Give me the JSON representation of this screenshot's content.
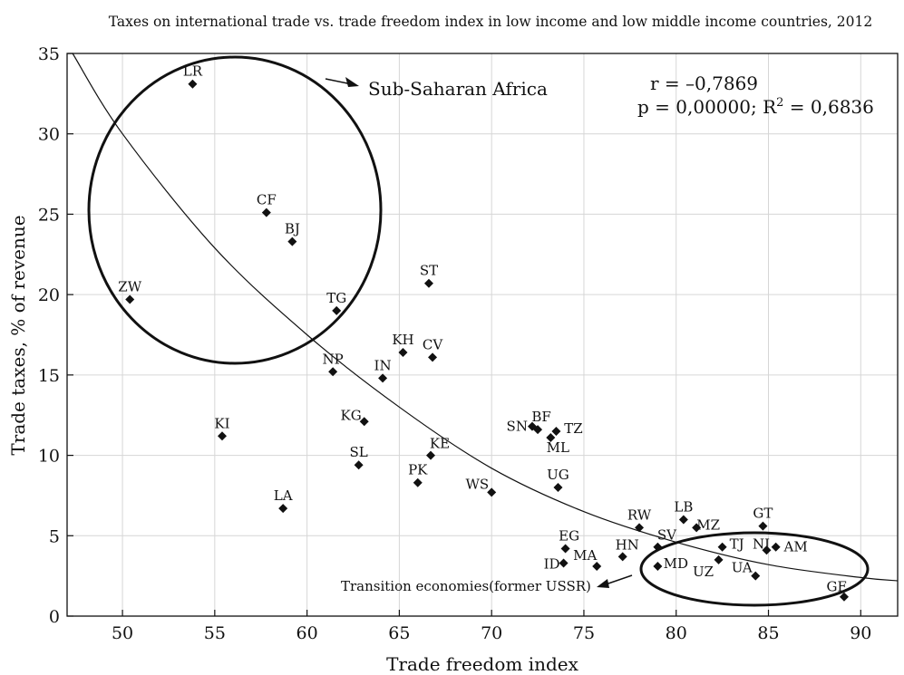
{
  "chart_data": {
    "type": "scatter",
    "title": "Taxes on international trade vs. trade freedom index in low income and low middle income countries, 2012",
    "xlabel": "Trade freedom index",
    "ylabel": "Trade taxes, % of revenue",
    "xlim": [
      47,
      92
    ],
    "ylim": [
      0,
      35
    ],
    "x_ticks": [
      50,
      55,
      60,
      65,
      70,
      75,
      80,
      85,
      90
    ],
    "y_ticks": [
      0,
      5,
      10,
      15,
      20,
      25,
      30,
      35
    ],
    "grid": true,
    "marker": "diamond",
    "points": [
      {
        "label": "LR",
        "x": 53.8,
        "y": 33.1
      },
      {
        "label": "CF",
        "x": 57.8,
        "y": 25.1
      },
      {
        "label": "BJ",
        "x": 59.2,
        "y": 23.3
      },
      {
        "label": "ZW",
        "x": 50.4,
        "y": 19.7
      },
      {
        "label": "TG",
        "x": 61.6,
        "y": 19.0
      },
      {
        "label": "ST",
        "x": 66.6,
        "y": 20.7
      },
      {
        "label": "KH",
        "x": 65.2,
        "y": 16.4
      },
      {
        "label": "CV",
        "x": 66.8,
        "y": 16.1
      },
      {
        "label": "NP",
        "x": 61.4,
        "y": 15.2
      },
      {
        "label": "IN",
        "x": 64.1,
        "y": 14.8
      },
      {
        "label": "KI",
        "x": 55.4,
        "y": 11.2
      },
      {
        "label": "KG",
        "x": 63.1,
        "y": 12.1
      },
      {
        "label": "SL",
        "x": 62.8,
        "y": 9.4
      },
      {
        "label": "KE",
        "x": 66.7,
        "y": 10.0
      },
      {
        "label": "PK",
        "x": 66.0,
        "y": 8.3
      },
      {
        "label": "LA",
        "x": 58.7,
        "y": 6.7
      },
      {
        "label": "WS",
        "x": 70.0,
        "y": 7.7
      },
      {
        "label": "SN",
        "x": 72.2,
        "y": 11.8
      },
      {
        "label": "BF",
        "x": 72.5,
        "y": 11.6
      },
      {
        "label": "TZ",
        "x": 73.5,
        "y": 11.5
      },
      {
        "label": "ML",
        "x": 73.2,
        "y": 11.1
      },
      {
        "label": "UG",
        "x": 73.6,
        "y": 8.0
      },
      {
        "label": "EG",
        "x": 74.0,
        "y": 4.2
      },
      {
        "label": "ID",
        "x": 73.9,
        "y": 3.3
      },
      {
        "label": "MA",
        "x": 75.7,
        "y": 3.1
      },
      {
        "label": "HN",
        "x": 77.1,
        "y": 3.7
      },
      {
        "label": "RW",
        "x": 78.0,
        "y": 5.5
      },
      {
        "label": "SV",
        "x": 79.0,
        "y": 4.3
      },
      {
        "label": "MD",
        "x": 79.0,
        "y": 3.1
      },
      {
        "label": "LB",
        "x": 80.4,
        "y": 6.0
      },
      {
        "label": "MZ",
        "x": 81.1,
        "y": 5.5
      },
      {
        "label": "TJ",
        "x": 82.5,
        "y": 4.3
      },
      {
        "label": "UZ",
        "x": 82.3,
        "y": 3.5
      },
      {
        "label": "GT",
        "x": 84.7,
        "y": 5.6
      },
      {
        "label": "NI",
        "x": 84.9,
        "y": 4.1
      },
      {
        "label": "AM",
        "x": 85.4,
        "y": 4.3
      },
      {
        "label": "UA",
        "x": 84.3,
        "y": 2.5
      },
      {
        "label": "GE",
        "x": 89.1,
        "y": 1.2
      }
    ],
    "trend_curve": [
      {
        "x": 47.3,
        "y": 35.0
      },
      {
        "x": 50,
        "y": 30.0
      },
      {
        "x": 55,
        "y": 22.9
      },
      {
        "x": 60,
        "y": 17.5
      },
      {
        "x": 65,
        "y": 13.0
      },
      {
        "x": 70,
        "y": 9.2
      },
      {
        "x": 75,
        "y": 6.5
      },
      {
        "x": 80,
        "y": 4.6
      },
      {
        "x": 85,
        "y": 3.2
      },
      {
        "x": 90,
        "y": 2.4
      },
      {
        "x": 92,
        "y": 2.2
      }
    ],
    "annotations": {
      "ssa_label": "Sub-Saharan Africa",
      "transition_label": "Transition economies(former USSR)",
      "r_text": "r = –0,7869",
      "p_text": "p = 0,00000; R",
      "r2_sup": "2",
      "r2_value": " = 0,6836"
    }
  }
}
